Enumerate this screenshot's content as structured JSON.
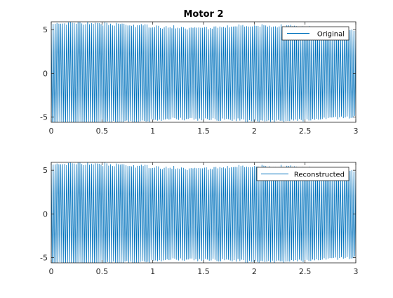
{
  "figure_title": "Motor 2",
  "colors": {
    "line": "#0072BD",
    "axes": "#262626",
    "background": "#ffffff"
  },
  "chart_data": [
    {
      "type": "line",
      "title": "Motor 2",
      "xlabel": "",
      "ylabel": "",
      "xlim": [
        0,
        3
      ],
      "ylim": [
        -5.6,
        5.9
      ],
      "xticks": [
        0,
        0.5,
        1,
        1.5,
        2,
        2.5,
        3
      ],
      "xtick_labels": [
        "0",
        "0.5",
        "1",
        "1.5",
        "2",
        "2.5",
        "3"
      ],
      "yticks": [
        -5,
        0,
        5
      ],
      "ytick_labels": [
        "-5",
        "0",
        "5"
      ],
      "grid": false,
      "legend_placement": "top-right",
      "signal": {
        "description": "dense oscillation",
        "cycles_per_unit": 53,
        "amplitude_range": [
          4.2,
          5.9
        ]
      },
      "series": [
        {
          "name": "Original"
        }
      ]
    },
    {
      "type": "line",
      "title": "",
      "xlabel": "",
      "ylabel": "",
      "xlim": [
        0,
        3
      ],
      "ylim": [
        -5.6,
        5.9
      ],
      "xticks": [
        0,
        0.5,
        1,
        1.5,
        2,
        2.5,
        3
      ],
      "xtick_labels": [
        "0",
        "0.5",
        "1",
        "1.5",
        "2",
        "2.5",
        "3"
      ],
      "yticks": [
        -5,
        0,
        5
      ],
      "ytick_labels": [
        "-5",
        "0",
        "5"
      ],
      "grid": false,
      "legend_placement": "top-right",
      "signal": {
        "description": "dense oscillation",
        "cycles_per_unit": 53,
        "amplitude_range": [
          4.2,
          5.9
        ]
      },
      "series": [
        {
          "name": "Reconstructed"
        }
      ]
    }
  ]
}
